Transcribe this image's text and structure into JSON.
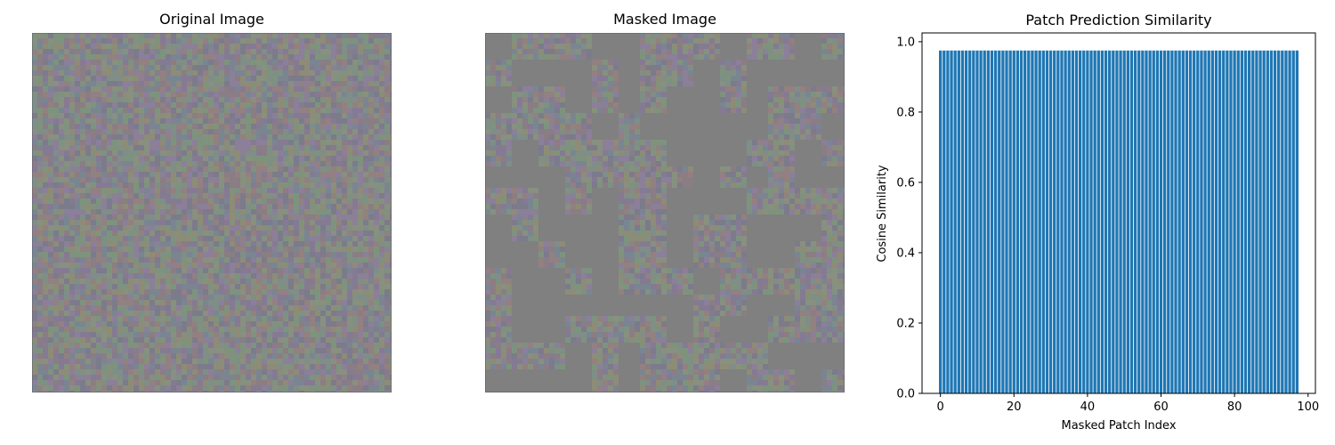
{
  "panels": {
    "original_title": "Original Image",
    "masked_title": "Masked Image"
  },
  "image_colors": {
    "noise_palette": [
      "#8a7d84",
      "#7f8e86",
      "#857a93",
      "#8d8c76",
      "#7a8592",
      "#938080",
      "#7e937d",
      "#8c7f99",
      "#88907f",
      "#7b7b8b"
    ],
    "mask_gray": "#808080",
    "border_tone": "#5a5a6a"
  },
  "chart_data": {
    "type": "bar",
    "title": "Patch Prediction Similarity",
    "xlabel": "Masked Patch Index",
    "ylabel": "Cosine Similarity",
    "bar_count": 98,
    "x": [
      0,
      1,
      2,
      3,
      4,
      5,
      6,
      7,
      8,
      9,
      10,
      11,
      12,
      13,
      14,
      15,
      16,
      17,
      18,
      19,
      20,
      21,
      22,
      23,
      24,
      25,
      26,
      27,
      28,
      29,
      30,
      31,
      32,
      33,
      34,
      35,
      36,
      37,
      38,
      39,
      40,
      41,
      42,
      43,
      44,
      45,
      46,
      47,
      48,
      49,
      50,
      51,
      52,
      53,
      54,
      55,
      56,
      57,
      58,
      59,
      60,
      61,
      62,
      63,
      64,
      65,
      66,
      67,
      68,
      69,
      70,
      71,
      72,
      73,
      74,
      75,
      76,
      77,
      78,
      79,
      80,
      81,
      82,
      83,
      84,
      85,
      86,
      87,
      88,
      89,
      90,
      91,
      92,
      93,
      94,
      95,
      96,
      97
    ],
    "value": 0.975,
    "xlim": [
      -5,
      102
    ],
    "ylim": [
      0,
      1.025
    ],
    "xticks": [
      0,
      20,
      40,
      60,
      80,
      100
    ],
    "xtick_labels": [
      "0",
      "20",
      "40",
      "60",
      "80",
      "100"
    ],
    "yticks": [
      0.0,
      0.2,
      0.4,
      0.6,
      0.8,
      1.0
    ],
    "ytick_labels": [
      "0.0",
      "0.2",
      "0.4",
      "0.6",
      "0.8",
      "1.0"
    ],
    "bar_color": "#1f77b4",
    "grid": false
  }
}
